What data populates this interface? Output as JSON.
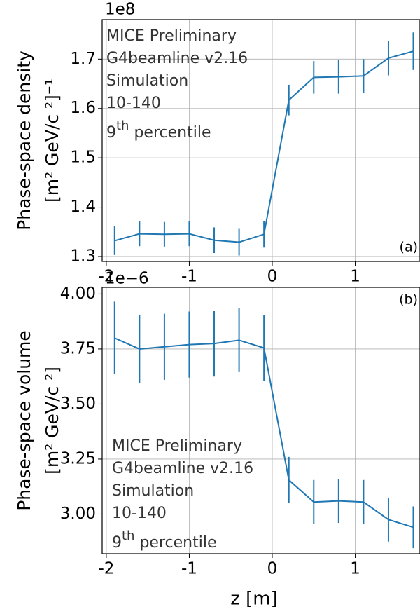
{
  "chart_data": [
    {
      "type": "errorbar",
      "offset_label": "1e8",
      "ylabel": [
        "Phase-space density",
        "[m² GeV/c ²]⁻¹"
      ],
      "panel_label": "(a)",
      "annotation": [
        "MICE Preliminary",
        "G4beamline v2.16",
        "Simulation",
        "10-140"
      ],
      "annotation_last": {
        "base": "9",
        "sup": "th",
        "rest": " percentile"
      },
      "x": [
        -1.9,
        -1.6,
        -1.3,
        -1.0,
        -0.7,
        -0.4,
        -0.1,
        0.2,
        0.5,
        0.8,
        1.1,
        1.4,
        1.7
      ],
      "series": [
        {
          "color": "#1f77b4",
          "values": [
            1.332,
            1.346,
            1.345,
            1.346,
            1.333,
            1.329,
            1.345,
            1.617,
            1.663,
            1.664,
            1.666,
            1.702,
            1.716
          ],
          "errors": [
            0.029,
            0.025,
            0.025,
            0.025,
            0.026,
            0.027,
            0.027,
            0.031,
            0.033,
            0.034,
            0.034,
            0.035,
            0.038
          ]
        }
      ],
      "xlim": [
        -2.05,
        1.78
      ],
      "xticks": [
        -2,
        -1,
        0,
        1
      ],
      "ylim": [
        1.29,
        1.78
      ],
      "yticks": [
        1.3,
        1.4,
        1.5,
        1.6,
        1.7
      ],
      "grid": true
    },
    {
      "type": "errorbar",
      "offset_label": "1e−6",
      "ylabel": [
        "Phase-space volume",
        "[m² GeV/c ²]"
      ],
      "panel_label": "(b)",
      "annotation": [
        "MICE Preliminary",
        "G4beamline v2.16",
        "Simulation",
        "10-140"
      ],
      "annotation_last": {
        "base": "9",
        "sup": "th",
        "rest": " percentile"
      },
      "x": [
        -1.9,
        -1.6,
        -1.3,
        -1.0,
        -0.7,
        -0.4,
        -0.1,
        0.2,
        0.5,
        0.8,
        1.1,
        1.4,
        1.7
      ],
      "series": [
        {
          "color": "#1f77b4",
          "values": [
            3.8,
            3.75,
            3.76,
            3.77,
            3.775,
            3.79,
            3.755,
            3.155,
            3.055,
            3.06,
            3.055,
            2.975,
            2.94
          ],
          "errors": [
            0.165,
            0.155,
            0.15,
            0.15,
            0.15,
            0.145,
            0.15,
            0.105,
            0.1,
            0.1,
            0.1,
            0.1,
            0.095
          ]
        }
      ],
      "xlim": [
        -2.05,
        1.78
      ],
      "xticks": [
        -2,
        -1,
        0,
        1
      ],
      "ylim": [
        2.82,
        4.03
      ],
      "yticks": [
        {
          "value": 3.0,
          "label": "3.00"
        },
        {
          "value": 3.25,
          "label": "3.25"
        },
        {
          "value": 3.5,
          "label": "3.50"
        },
        {
          "value": 3.75,
          "label": "3.75"
        },
        {
          "value": 4.0,
          "label": "4.00"
        }
      ],
      "grid": true,
      "xlabel": "z [m]"
    }
  ]
}
